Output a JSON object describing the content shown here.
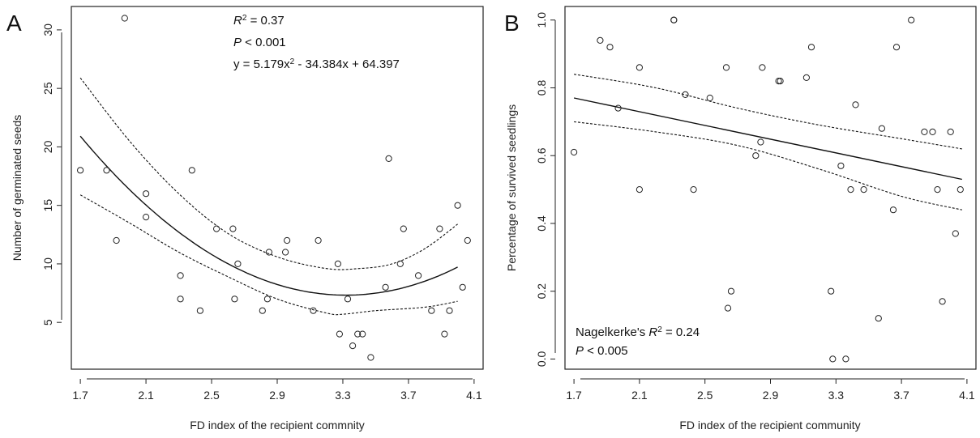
{
  "chart_data": [
    {
      "type": "scatter",
      "panel_label": "A",
      "xlabel": "FD index of the recipient commnity",
      "ylabel": "Number of germinated seeds",
      "xlim": [
        1.65,
        4.15
      ],
      "ylim": [
        1.0,
        32.0
      ],
      "xticks": [
        1.7,
        2.1,
        2.5,
        2.9,
        3.3,
        3.7,
        4.1
      ],
      "xtick_labels": [
        "1.7",
        "2.1",
        "2.5",
        "2.9",
        "3.3",
        "3.7",
        "4.1"
      ],
      "yticks": [
        5,
        10,
        15,
        20,
        25,
        30
      ],
      "ytick_labels": [
        "5",
        "10",
        "15",
        "20",
        "25",
        "30"
      ],
      "x": [
        1.7,
        1.86,
        1.92,
        1.97,
        2.1,
        2.1,
        2.31,
        2.31,
        2.38,
        2.43,
        2.53,
        2.63,
        2.64,
        2.66,
        2.81,
        2.84,
        2.85,
        2.95,
        2.96,
        3.12,
        3.15,
        3.27,
        3.28,
        3.33,
        3.36,
        3.39,
        3.42,
        3.47,
        3.56,
        3.58,
        3.65,
        3.67,
        3.76,
        3.84,
        3.89,
        3.92,
        3.95,
        4.0,
        4.03,
        4.06
      ],
      "y": [
        18,
        18,
        12,
        31,
        16,
        14,
        9,
        7,
        18,
        6,
        13,
        13,
        7,
        10,
        6,
        7,
        11,
        11,
        12,
        6,
        12,
        10,
        4,
        7,
        3,
        4,
        4,
        2,
        8,
        19,
        10,
        13,
        9,
        6,
        13,
        4,
        6,
        15,
        8,
        12
      ],
      "fit": {
        "a": 5.179,
        "b": -34.384,
        "c": 64.397
      },
      "ci_lower": [
        [
          1.7,
          15.9
        ],
        [
          2.0,
          13.5
        ],
        [
          2.3,
          11.0
        ],
        [
          2.6,
          8.9
        ],
        [
          2.9,
          7.0
        ],
        [
          3.2,
          5.8
        ],
        [
          3.3,
          5.7
        ],
        [
          3.5,
          6.0
        ],
        [
          3.8,
          6.3
        ],
        [
          4.0,
          6.8
        ]
      ],
      "ci_upper": [
        [
          1.7,
          25.9
        ],
        [
          2.0,
          20.5
        ],
        [
          2.3,
          16.0
        ],
        [
          2.6,
          12.6
        ],
        [
          2.9,
          10.6
        ],
        [
          3.2,
          9.6
        ],
        [
          3.4,
          9.6
        ],
        [
          3.6,
          10.0
        ],
        [
          3.8,
          11.3
        ],
        [
          4.0,
          13.4
        ]
      ],
      "annotations": {
        "r2_prefix": "R",
        "r2_sup": "2",
        "r2_value": " = 0.37",
        "p_prefix": "P",
        "p_value": " < 0.001",
        "eq_part1": "y = 5.179x",
        "eq_sup": "2",
        "eq_part2": " - 34.384x + 64.397"
      }
    },
    {
      "type": "scatter",
      "panel_label": "B",
      "xlabel": "FD index of the recipient community",
      "ylabel": "Percentage of survived seedlings",
      "xlim": [
        1.65,
        4.15
      ],
      "ylim": [
        -0.03,
        1.04
      ],
      "xticks": [
        1.7,
        2.1,
        2.5,
        2.9,
        3.3,
        3.7,
        4.1
      ],
      "xtick_labels": [
        "1.7",
        "2.1",
        "2.5",
        "2.9",
        "3.3",
        "3.7",
        "4.1"
      ],
      "yticks": [
        0.0,
        0.2,
        0.4,
        0.6,
        0.8,
        1.0
      ],
      "ytick_labels": [
        "0.0",
        "0.2",
        "0.4",
        "0.6",
        "0.8",
        "1.0"
      ],
      "x": [
        1.7,
        1.86,
        1.92,
        1.97,
        2.1,
        2.1,
        2.31,
        2.31,
        2.38,
        2.43,
        2.53,
        2.63,
        2.64,
        2.66,
        2.81,
        2.84,
        2.85,
        2.95,
        2.96,
        3.12,
        3.15,
        3.27,
        3.28,
        3.33,
        3.36,
        3.39,
        3.42,
        3.47,
        3.56,
        3.58,
        3.65,
        3.67,
        3.76,
        3.84,
        3.89,
        3.92,
        3.95,
        4.0,
        4.03,
        4.06
      ],
      "y": [
        0.61,
        0.94,
        0.92,
        0.74,
        0.86,
        0.5,
        1.0,
        1.0,
        0.78,
        0.5,
        0.77,
        0.86,
        0.15,
        0.2,
        0.6,
        0.64,
        0.86,
        0.82,
        0.82,
        0.83,
        0.92,
        0.2,
        0.0,
        0.57,
        0.0,
        0.5,
        0.75,
        0.5,
        0.12,
        0.68,
        0.44,
        0.92,
        1.0,
        0.67,
        0.67,
        0.5,
        0.17,
        0.67,
        0.37,
        0.5
      ],
      "fit_line": [
        [
          1.7,
          0.77
        ],
        [
          4.07,
          0.53
        ]
      ],
      "ci_lower": [
        [
          1.7,
          0.7
        ],
        [
          2.2,
          0.67
        ],
        [
          2.7,
          0.63
        ],
        [
          3.2,
          0.56
        ],
        [
          3.7,
          0.48
        ],
        [
          4.07,
          0.44
        ]
      ],
      "ci_upper": [
        [
          1.7,
          0.84
        ],
        [
          2.2,
          0.8
        ],
        [
          2.7,
          0.74
        ],
        [
          3.2,
          0.69
        ],
        [
          3.7,
          0.65
        ],
        [
          4.07,
          0.62
        ]
      ],
      "annotations": {
        "nk_prefix": "Nagelkerke's ",
        "r2_prefix": "R",
        "r2_sup": "2",
        "r2_value": " = 0.24",
        "p_prefix": "P",
        "p_value": " < 0.005"
      }
    }
  ]
}
